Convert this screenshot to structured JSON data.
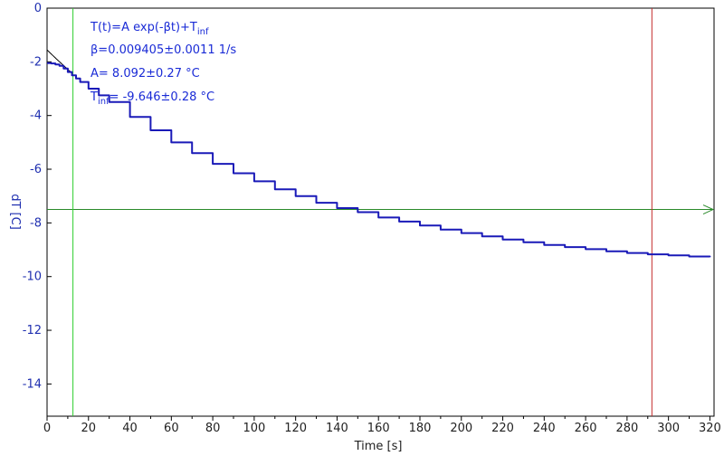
{
  "chart_data": {
    "type": "line",
    "title": "",
    "xlabel": "Time [s]",
    "ylabel": "dT [C]",
    "xlim": [
      0,
      322
    ],
    "ylim": [
      -15.2,
      0
    ],
    "xticks": [
      0,
      20,
      40,
      60,
      80,
      100,
      120,
      140,
      160,
      180,
      200,
      220,
      240,
      260,
      280,
      300,
      320
    ],
    "yticks": [
      0,
      -2,
      -4,
      -6,
      -8,
      -10,
      -12,
      -14
    ],
    "grid": false,
    "legend": "none",
    "colors": {
      "data": "#1a1ab8",
      "fit": "#000000",
      "cursor_green": "#2ecc2e",
      "cursor_red": "#c42a2a",
      "threshold": "#2a8a2a",
      "ytick_color": "#1f2fb0",
      "annotation": "#1a2bd6"
    },
    "fit": {
      "A": 8.092,
      "beta": 0.009405,
      "T_inf": -9.646
    },
    "series": [
      {
        "x": [
          0,
          2,
          4,
          6,
          8,
          10,
          12,
          14,
          16,
          20,
          25,
          30,
          40,
          50,
          60,
          70,
          80,
          90,
          100,
          110,
          120,
          130,
          140,
          150,
          160,
          170,
          180,
          190,
          200,
          210,
          220,
          230,
          240,
          250,
          260,
          270,
          280,
          290,
          300,
          310,
          320
        ],
        "y": [
          -2.05,
          -2.06,
          -2.1,
          -2.15,
          -2.25,
          -2.38,
          -2.5,
          -2.62,
          -2.75,
          -3.0,
          -3.25,
          -3.5,
          -4.05,
          -4.55,
          -5.0,
          -5.4,
          -5.8,
          -6.15,
          -6.45,
          -6.75,
          -7.0,
          -7.25,
          -7.45,
          -7.6,
          -7.8,
          -7.95,
          -8.1,
          -8.25,
          -8.38,
          -8.5,
          -8.62,
          -8.72,
          -8.82,
          -8.9,
          -8.98,
          -9.06,
          -9.12,
          -9.17,
          -9.21,
          -9.25,
          -9.28
        ]
      }
    ],
    "cursors": {
      "green_x": 12.5,
      "red_x": 292
    },
    "threshold_y": -7.5,
    "annotations": {
      "line1_main": "T(t)=A exp(-βt)+T",
      "line1_sub": "inf",
      "line2": "β=0.009405±0.0011 1/s",
      "line3": "A= 8.092±0.27 °C",
      "line4_main": "T",
      "line4_sub": "inf",
      "line4_rest": "= -9.646±0.28 °C"
    }
  }
}
